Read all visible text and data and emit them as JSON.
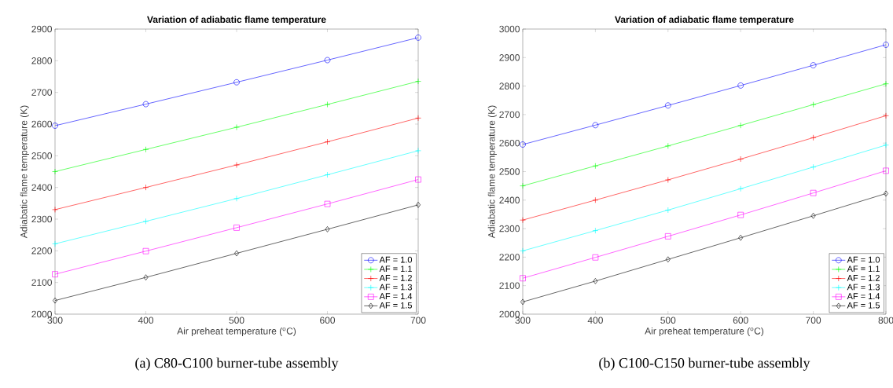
{
  "chart_data": [
    {
      "type": "line",
      "title": "Variation of adiabatic flame temperature",
      "xlabel": "Air preheat temperature ($^{o}$C)",
      "ylabel": "Adiabatic flame temperature (K)",
      "annotations": [
        "(a) C80-C100 burner-tube assembly"
      ],
      "x": [
        300,
        400,
        500,
        600,
        700
      ],
      "xlim": [
        300,
        700
      ],
      "ylim": [
        2000,
        2900
      ],
      "xticks": [
        300,
        400,
        500,
        600,
        700
      ],
      "yticks": [
        2000,
        2100,
        2200,
        2300,
        2400,
        2500,
        2600,
        2700,
        2800,
        2900
      ],
      "legend": "bottom right",
      "line_style": "solid",
      "series": [
        {
          "name": "AF = 1.0",
          "color": "#0000ff",
          "marker": "circle",
          "values": [
            2595,
            2663,
            2732,
            2802,
            2873
          ]
        },
        {
          "name": "AF = 1.1",
          "color": "#00ff00",
          "marker": "cross",
          "values": [
            2450,
            2520,
            2590,
            2662,
            2735
          ]
        },
        {
          "name": "AF = 1.2",
          "color": "#ff0000",
          "marker": "cross",
          "values": [
            2330,
            2400,
            2471,
            2544,
            2619
          ]
        },
        {
          "name": "AF = 1.3",
          "color": "#00ffff",
          "marker": "cross",
          "values": [
            2222,
            2293,
            2365,
            2440,
            2516
          ]
        },
        {
          "name": "AF = 1.4",
          "color": "#ff00ff",
          "marker": "square",
          "values": [
            2126,
            2199,
            2273,
            2348,
            2425
          ]
        },
        {
          "name": "AF = 1.5",
          "color": "#000000",
          "marker": "diamond",
          "values": [
            2043,
            2116,
            2192,
            2268,
            2345
          ]
        }
      ]
    },
    {
      "type": "line",
      "title": "Variation of adiabatic flame temperature",
      "xlabel": "Air preheat temperature ($^{o}$C)",
      "ylabel": "Adiabatic flame temperature (K)",
      "annotations": [
        "(b) C100-C150 burner-tube assembly"
      ],
      "x": [
        300,
        400,
        500,
        600,
        700,
        800
      ],
      "xlim": [
        300,
        800
      ],
      "ylim": [
        2000,
        3000
      ],
      "xticks": [
        300,
        400,
        500,
        600,
        700,
        800
      ],
      "yticks": [
        2000,
        2100,
        2200,
        2300,
        2400,
        2500,
        2600,
        2700,
        2800,
        2900,
        3000
      ],
      "legend": "bottom right",
      "line_style": "solid",
      "series": [
        {
          "name": "AF = 1.0",
          "color": "#0000ff",
          "marker": "circle",
          "values": [
            2595,
            2663,
            2732,
            2802,
            2873,
            2945
          ]
        },
        {
          "name": "AF = 1.1",
          "color": "#00ff00",
          "marker": "cross",
          "values": [
            2450,
            2520,
            2590,
            2662,
            2735,
            2808
          ]
        },
        {
          "name": "AF = 1.2",
          "color": "#ff0000",
          "marker": "cross",
          "values": [
            2330,
            2400,
            2471,
            2544,
            2619,
            2696
          ]
        },
        {
          "name": "AF = 1.3",
          "color": "#00ffff",
          "marker": "cross",
          "values": [
            2222,
            2293,
            2365,
            2440,
            2516,
            2593
          ]
        },
        {
          "name": "AF = 1.4",
          "color": "#ff00ff",
          "marker": "square",
          "values": [
            2126,
            2199,
            2273,
            2348,
            2425,
            2503
          ]
        },
        {
          "name": "AF = 1.5",
          "color": "#000000",
          "marker": "diamond",
          "values": [
            2043,
            2116,
            2192,
            2268,
            2345,
            2423
          ]
        }
      ]
    }
  ]
}
